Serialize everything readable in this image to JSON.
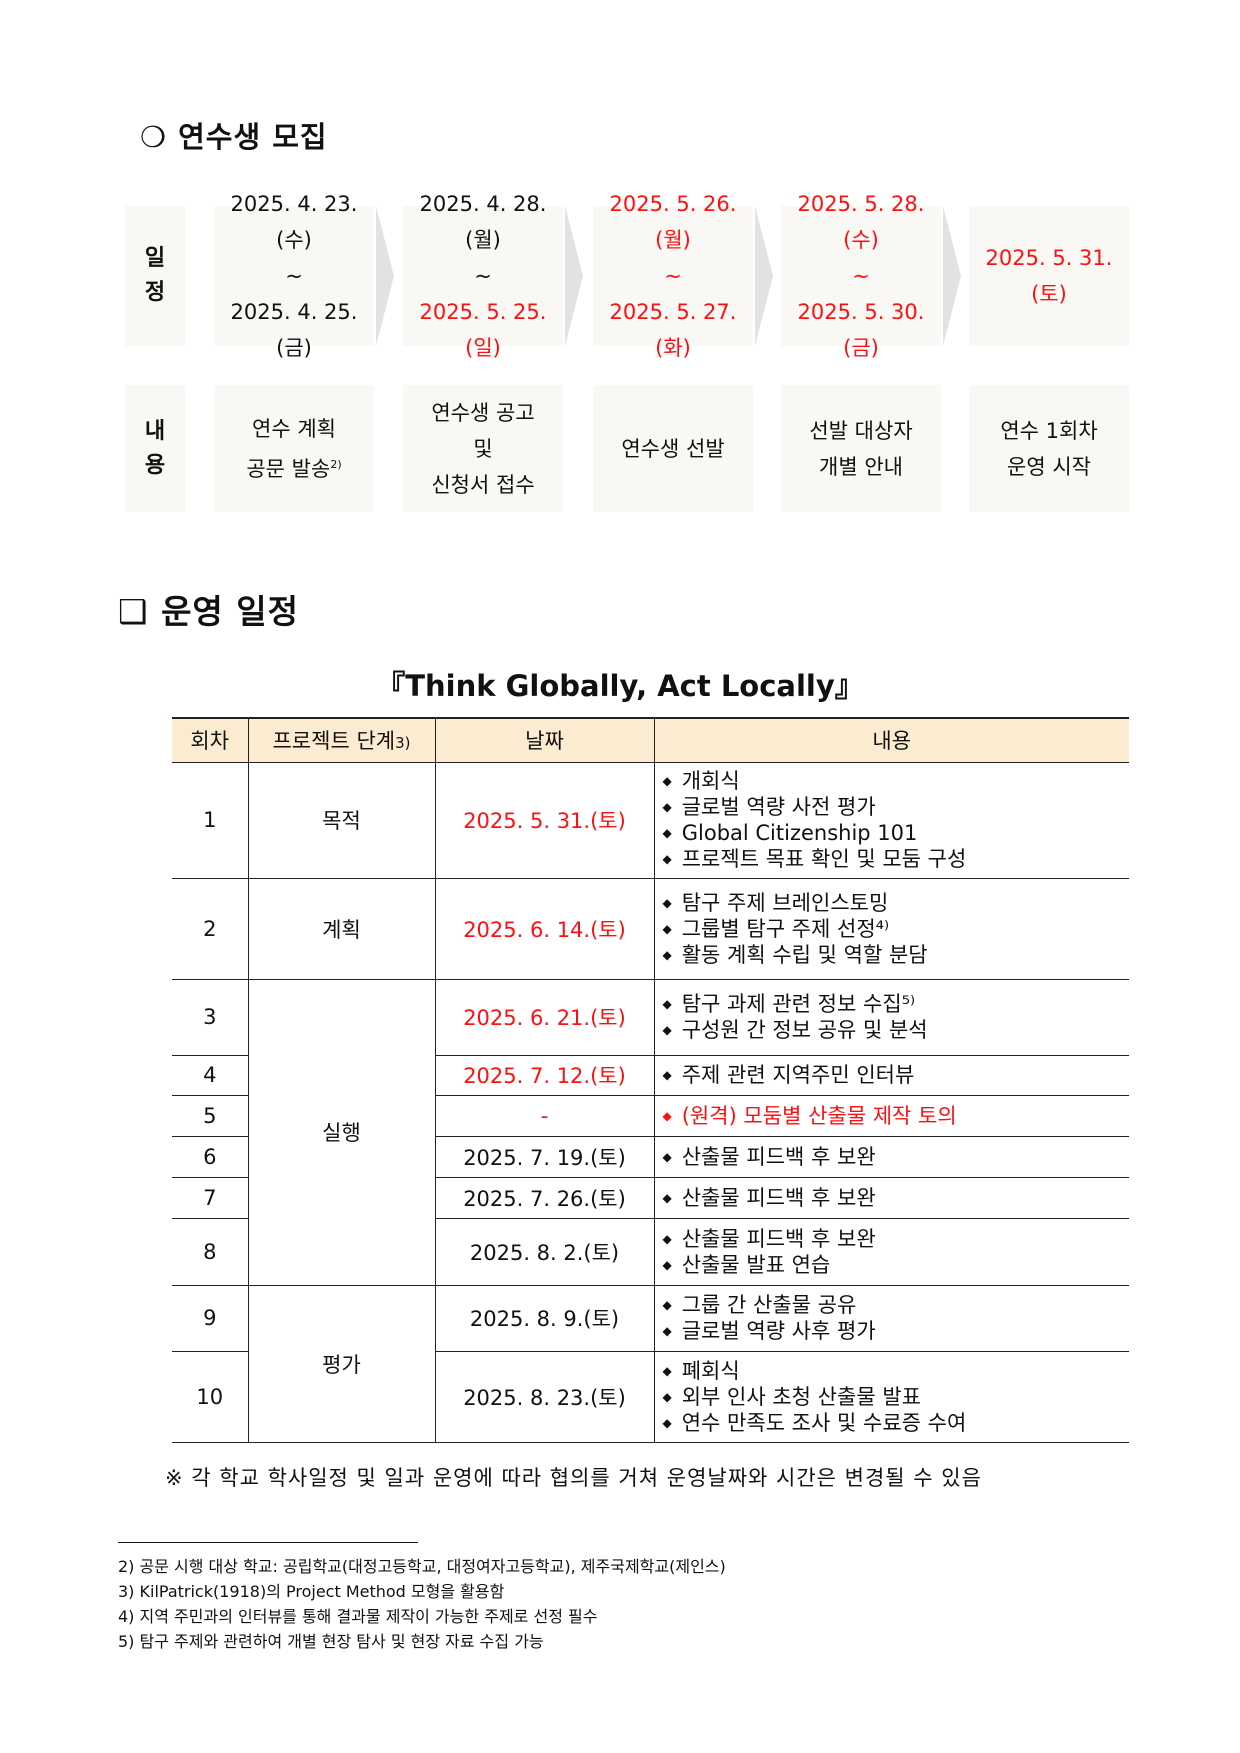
{
  "recruit": {
    "title": "❍ 연수생 모집",
    "schedule_label": "일\n정",
    "content_label": "내\n용",
    "steps": [
      {
        "from": "2025. 4. 23.(수)",
        "to": "2025. 4. 25.(금)",
        "from_red": false,
        "to_red": false,
        "content": [
          "연수 계획",
          "공문 발송"
        ],
        "sup": "2)"
      },
      {
        "from": "2025. 4. 28.(월)",
        "to": "2025. 5. 25.(일)",
        "from_red": false,
        "to_red": true,
        "content": [
          "연수생 공고",
          "및",
          "신청서 접수"
        ]
      },
      {
        "from": "2025. 5. 26.(월)",
        "to": "2025. 5. 27.(화)",
        "from_red": true,
        "to_red": true,
        "content": [
          "연수생 선발"
        ]
      },
      {
        "from": "2025. 5. 28.(수)",
        "to": "2025. 5. 30.(금)",
        "from_red": true,
        "to_red": true,
        "content": [
          "선발 대상자",
          "개별 안내"
        ]
      },
      {
        "single": "2025. 5. 31.(토)",
        "content": [
          "연수 1회차",
          "운영 시작"
        ]
      }
    ],
    "tilde": "~"
  },
  "operation": {
    "title": "❑ 운영 일정",
    "subtitle": "『Think Globally, Act Locally』",
    "headers": [
      "회차",
      "프로젝트 단계",
      "날짜",
      "내용"
    ],
    "header_sup": "3)",
    "stages": [
      "목적",
      "계획",
      "실행",
      "평가"
    ],
    "rows": [
      {
        "no": "1",
        "date": "2025. 5. 31.(토)",
        "red": true,
        "items": [
          "개회식",
          "글로벌 역량 사전 평가",
          "Global Citizenship 101",
          "프로젝트 목표 확인 및 모둠 구성"
        ]
      },
      {
        "no": "2",
        "date": "2025. 6. 14.(토)",
        "red": true,
        "items": [
          "탐구 주제 브레인스토밍",
          "그룹별 탐구 주제 선정⁴⁾",
          "활동 계획 수립 및 역할 분담"
        ]
      },
      {
        "no": "3",
        "date": "2025. 6. 21.(토)",
        "red": true,
        "items": [
          "탐구 과제 관련 정보 수집⁵⁾",
          "구성원 간 정보 공유 및 분석"
        ]
      },
      {
        "no": "4",
        "date": "2025. 7. 12.(토)",
        "red": true,
        "items": [
          "주제 관련 지역주민 인터뷰"
        ]
      },
      {
        "no": "5",
        "date": "-",
        "red": true,
        "items": [
          "(원격) 모둠별 산출물 제작 토의"
        ],
        "items_red": true
      },
      {
        "no": "6",
        "date": "2025. 7. 19.(토)",
        "items": [
          "산출물 피드백 후 보완"
        ]
      },
      {
        "no": "7",
        "date": "2025. 7. 26.(토)",
        "items": [
          "산출물 피드백 후 보완"
        ]
      },
      {
        "no": "8",
        "date": "2025. 8. 2.(토)",
        "items": [
          "산출물 피드백 후 보완",
          "산출물 발표 연습"
        ]
      },
      {
        "no": "9",
        "date": "2025. 8. 9.(토)",
        "items": [
          "그룹 간 산출물 공유",
          "글로벌 역량 사후 평가"
        ]
      },
      {
        "no": "10",
        "date": "2025. 8. 23.(토)",
        "items": [
          "폐회식",
          "외부 인사 초청 산출물 발표",
          "연수 만족도 조사 및 수료증 수여"
        ]
      }
    ],
    "note": "※ 각 학교 학사일정 및 일과 운영에 따라 협의를 거쳐 운영날짜와 시간은 변경될 수 있음"
  },
  "footnotes": [
    "2) 공문 시행 대상 학교: 공립학교(대정고등학교, 대정여자고등학교), 제주국제학교(제인스)",
    "3) KilPatrick(1918)의 Project Method 모형을 활용함",
    "4) 지역 주민과의 인터뷰를 통해 결과물 제작이 가능한 주제로 선정 필수",
    "5) 탐구 주제와 관련하여 개별 현장 탐사 및 현장 자료 수집 가능"
  ],
  "colors": {
    "red": "#ff1010",
    "header_bg": "#fbebd0",
    "box_bg": "#f9f8f5"
  }
}
